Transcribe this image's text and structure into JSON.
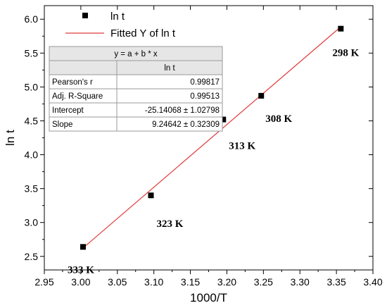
{
  "chart_data": {
    "type": "scatter",
    "xlabel": "1000/T",
    "ylabel": "ln t",
    "xlim": [
      2.95,
      3.4
    ],
    "ylim": [
      2.3,
      6.2
    ],
    "xticks": [
      "2.95",
      "3.00",
      "3.05",
      "3.10",
      "3.15",
      "3.20",
      "3.25",
      "3.30",
      "3.35",
      "3.40"
    ],
    "yticks": [
      "2.5",
      "3.0",
      "3.5",
      "4.0",
      "4.5",
      "5.0",
      "5.5",
      "6.0"
    ],
    "series": [
      {
        "name": "ln t",
        "marker": "square",
        "color": "#000000",
        "points": [
          {
            "x": 3.003,
            "y": 2.64,
            "label": "333 K"
          },
          {
            "x": 3.096,
            "y": 3.4,
            "label": "323 K"
          },
          {
            "x": 3.195,
            "y": 4.52,
            "label": "313 K"
          },
          {
            "x": 3.247,
            "y": 4.87,
            "label": "308 K"
          },
          {
            "x": 3.356,
            "y": 5.86,
            "label": "298 K"
          }
        ]
      },
      {
        "name": "Fitted Y of ln t",
        "type": "line",
        "color": "#e03a3a",
        "x": [
          3.003,
          3.356
        ],
        "y": [
          2.624,
          5.888
        ]
      }
    ],
    "legend": {
      "position": "top-left",
      "entries": [
        "ln t",
        "Fitted Y of ln t"
      ]
    },
    "stats_table": {
      "equation": "y = a + b * x",
      "column_header": "ln t",
      "rows": [
        {
          "label": "Pearson's r",
          "value": "0.99817"
        },
        {
          "label": "Adj. R-Square",
          "value": "0.99513"
        },
        {
          "label": "Intercept",
          "value": "-25.14068 ± 1.02798"
        },
        {
          "label": "Slope",
          "value": "9.24642 ± 0.32309"
        }
      ]
    },
    "grid": false
  }
}
